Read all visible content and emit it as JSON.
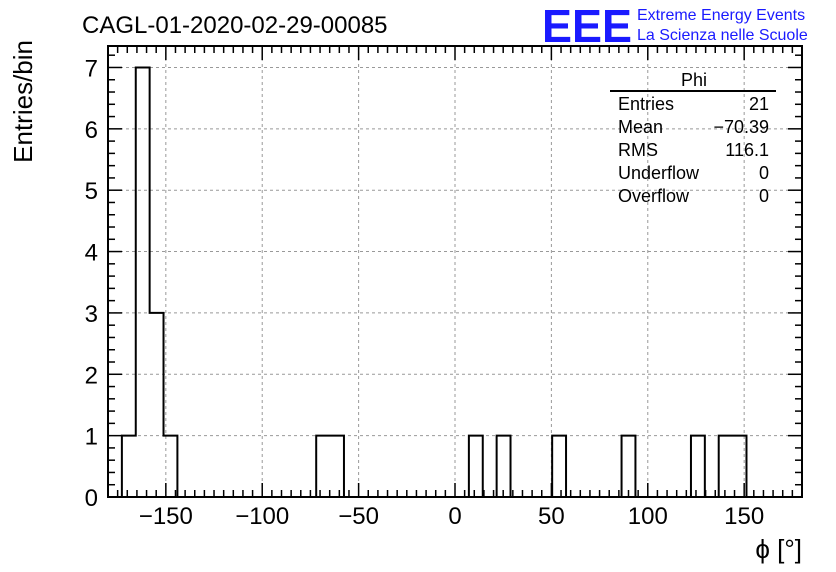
{
  "chart_data": {
    "type": "bar",
    "title": "CAGL-01-2020-02-29-00085",
    "xlabel": "ϕ [°]",
    "ylabel": "Entries/bin",
    "xlim": [
      -180,
      180
    ],
    "ylim": [
      0,
      7.35
    ],
    "grid": true,
    "x_ticks": [
      -150,
      -100,
      -50,
      0,
      50,
      100,
      150
    ],
    "x_tick_labels": [
      "−150",
      "−100",
      "−50",
      "0",
      "50",
      "100",
      "150"
    ],
    "y_ticks": [
      0,
      1,
      2,
      3,
      4,
      5,
      6,
      7
    ],
    "y_tick_labels": [
      "0",
      "1",
      "2",
      "3",
      "4",
      "5",
      "6",
      "7"
    ],
    "bin_width": 7.2,
    "bins": [
      {
        "x0": -172.8,
        "x1": -165.6,
        "count": 1
      },
      {
        "x0": -165.6,
        "x1": -158.4,
        "count": 7
      },
      {
        "x0": -158.4,
        "x1": -151.2,
        "count": 3
      },
      {
        "x0": -151.2,
        "x1": -144.0,
        "count": 1
      },
      {
        "x0": -72.0,
        "x1": -64.8,
        "count": 1
      },
      {
        "x0": -64.8,
        "x1": -57.6,
        "count": 1
      },
      {
        "x0": 7.2,
        "x1": 14.4,
        "count": 1
      },
      {
        "x0": 21.6,
        "x1": 28.8,
        "count": 1
      },
      {
        "x0": 50.4,
        "x1": 57.6,
        "count": 1
      },
      {
        "x0": 86.4,
        "x1": 93.6,
        "count": 1
      },
      {
        "x0": 122.4,
        "x1": 129.6,
        "count": 1
      },
      {
        "x0": 136.8,
        "x1": 144.0,
        "count": 1
      },
      {
        "x0": 144.0,
        "x1": 151.2,
        "count": 1
      }
    ],
    "stats_box": {
      "title": "Phi",
      "placement": "top-right",
      "rows": [
        {
          "label": "Entries",
          "value": "21"
        },
        {
          "label": "Mean",
          "value": "−70.39"
        },
        {
          "label": "RMS",
          "value": "116.1"
        },
        {
          "label": "Underflow",
          "value": "0"
        },
        {
          "label": "Overflow",
          "value": "0"
        }
      ]
    }
  },
  "logo": {
    "mark": "EEE",
    "line1": "Extreme Energy Events",
    "line2": "La Scienza nelle Scuole",
    "color": "#1a1aff"
  }
}
